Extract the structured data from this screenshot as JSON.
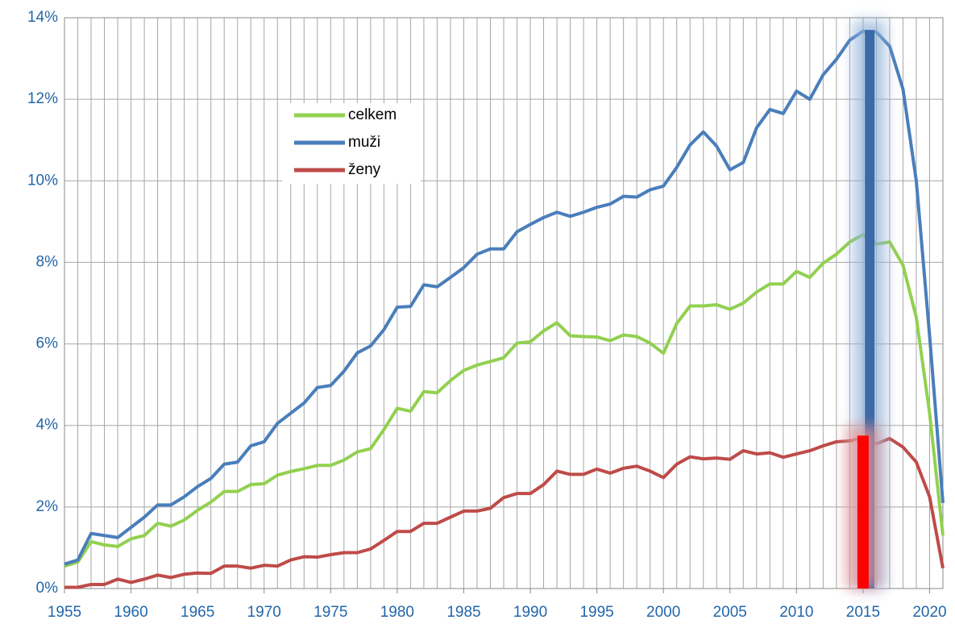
{
  "chart_data": {
    "type": "line",
    "x": [
      1955,
      1956,
      1957,
      1958,
      1959,
      1960,
      1961,
      1962,
      1963,
      1964,
      1965,
      1966,
      1967,
      1968,
      1969,
      1970,
      1971,
      1972,
      1973,
      1974,
      1975,
      1976,
      1977,
      1978,
      1979,
      1980,
      1981,
      1982,
      1983,
      1984,
      1985,
      1986,
      1987,
      1988,
      1989,
      1990,
      1991,
      1992,
      1993,
      1994,
      1995,
      1996,
      1997,
      1998,
      1999,
      2000,
      2001,
      2002,
      2003,
      2004,
      2005,
      2006,
      2007,
      2008,
      2009,
      2010,
      2011,
      2012,
      2013,
      2014,
      2015,
      2016,
      2017,
      2018,
      2019,
      2020,
      2021
    ],
    "series": [
      {
        "name": "celkem",
        "color": "#92d050",
        "values": [
          0.55,
          0.65,
          1.15,
          1.07,
          1.03,
          1.22,
          1.3,
          1.6,
          1.53,
          1.68,
          1.92,
          2.12,
          2.38,
          2.38,
          2.55,
          2.57,
          2.78,
          2.87,
          2.94,
          3.02,
          3.02,
          3.15,
          3.35,
          3.43,
          3.9,
          4.42,
          4.35,
          4.83,
          4.8,
          5.1,
          5.35,
          5.48,
          5.57,
          5.66,
          6.02,
          6.05,
          6.32,
          6.52,
          6.2,
          6.18,
          6.17,
          6.08,
          6.22,
          6.18,
          6.02,
          5.77,
          6.5,
          6.93,
          6.93,
          6.96,
          6.85,
          7.0,
          7.27,
          7.47,
          7.47,
          7.78,
          7.63,
          7.98,
          8.2,
          8.5,
          8.68,
          8.45,
          8.5,
          7.93,
          6.65,
          4.3,
          1.3
        ]
      },
      {
        "name": "muži",
        "color": "#4a7ebb",
        "values": [
          0.6,
          0.7,
          1.35,
          1.3,
          1.25,
          1.5,
          1.75,
          2.05,
          2.05,
          2.25,
          2.5,
          2.7,
          3.05,
          3.1,
          3.5,
          3.6,
          4.05,
          4.3,
          4.55,
          4.93,
          4.98,
          5.33,
          5.78,
          5.95,
          6.35,
          6.9,
          6.92,
          7.45,
          7.4,
          7.63,
          7.87,
          8.2,
          8.33,
          8.33,
          8.75,
          8.93,
          9.1,
          9.23,
          9.13,
          9.23,
          9.35,
          9.43,
          9.62,
          9.6,
          9.78,
          9.87,
          10.33,
          10.88,
          11.2,
          10.85,
          10.27,
          10.45,
          11.3,
          11.75,
          11.65,
          12.2,
          12.0,
          12.6,
          12.98,
          13.45,
          13.67,
          13.65,
          13.3,
          12.25,
          10.0,
          6.2,
          2.1
        ]
      },
      {
        "name": "ženy",
        "color": "#be4b48",
        "values": [
          0.03,
          0.03,
          0.1,
          0.1,
          0.23,
          0.15,
          0.23,
          0.33,
          0.27,
          0.35,
          0.38,
          0.37,
          0.55,
          0.55,
          0.5,
          0.57,
          0.55,
          0.7,
          0.78,
          0.77,
          0.83,
          0.88,
          0.88,
          0.97,
          1.18,
          1.4,
          1.4,
          1.6,
          1.6,
          1.75,
          1.9,
          1.9,
          1.97,
          2.23,
          2.33,
          2.33,
          2.55,
          2.88,
          2.8,
          2.8,
          2.93,
          2.83,
          2.95,
          3.0,
          2.88,
          2.72,
          3.05,
          3.23,
          3.18,
          3.2,
          3.17,
          3.38,
          3.3,
          3.33,
          3.22,
          3.3,
          3.38,
          3.5,
          3.6,
          3.62,
          3.7,
          3.55,
          3.68,
          3.47,
          3.1,
          2.25,
          0.5
        ]
      }
    ],
    "highlights": [
      {
        "x": 2015.5,
        "value": 13.7,
        "color": "#3a6aa8",
        "glow": "#8fb0d8"
      },
      {
        "x": 2015,
        "value": 3.75,
        "color": "#ff0000",
        "glow": "#e89090"
      }
    ],
    "xlim": [
      1955,
      2021
    ],
    "ylim": [
      0,
      14
    ],
    "xticks": [
      1955,
      1960,
      1965,
      1970,
      1975,
      1980,
      1985,
      1990,
      1995,
      2000,
      2005,
      2010,
      2015,
      2020
    ],
    "yticks": [
      {
        "value": 0,
        "label": "0%"
      },
      {
        "value": 2,
        "label": "2%"
      },
      {
        "value": 4,
        "label": "4%"
      },
      {
        "value": 6,
        "label": "6%"
      },
      {
        "value": 8,
        "label": "8%"
      },
      {
        "value": 10,
        "label": "10%"
      },
      {
        "value": 12,
        "label": "12%"
      },
      {
        "value": 14,
        "label": "14%"
      }
    ],
    "grid": true
  }
}
